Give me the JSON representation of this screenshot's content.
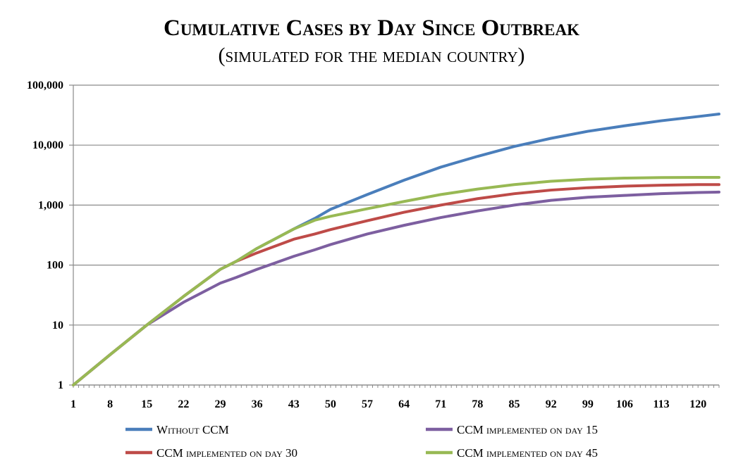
{
  "chart_data": {
    "type": "line",
    "title": "Cumulative Cases by Day Since Outbreak",
    "subtitle": "(simulated for the median country)",
    "xlabel": "",
    "ylabel": "",
    "yscale": "log",
    "ylim": [
      1,
      100000
    ],
    "xlim": [
      1,
      124
    ],
    "grid": true,
    "legend_position": "bottom",
    "x_ticks": [
      "1",
      "8",
      "15",
      "22",
      "29",
      "36",
      "43",
      "50",
      "57",
      "64",
      "71",
      "78",
      "85",
      "92",
      "99",
      "106",
      "113",
      "120"
    ],
    "y_ticks": [
      "1",
      "10",
      "100",
      "1,000",
      "10,000",
      "100,000"
    ],
    "x": [
      1,
      8,
      15,
      22,
      29,
      32,
      36,
      43,
      47,
      50,
      57,
      64,
      71,
      78,
      85,
      92,
      99,
      106,
      113,
      120,
      124
    ],
    "series": [
      {
        "name": "Without  CCM",
        "color": "#4a7ebb",
        "values": [
          1,
          3.2,
          10,
          30,
          85,
          115,
          190,
          400,
          600,
          850,
          1500,
          2600,
          4300,
          6500,
          9500,
          13000,
          17000,
          21000,
          25500,
          30000,
          33000
        ]
      },
      {
        "name": "CCM implemented on day 15",
        "color": "#7d5fa0",
        "values": [
          1,
          3.2,
          10,
          24,
          50,
          62,
          85,
          140,
          180,
          220,
          330,
          460,
          620,
          800,
          1000,
          1200,
          1350,
          1450,
          1550,
          1620,
          1650
        ]
      },
      {
        "name": "CCM implemented on day 30",
        "color": "#be4b48",
        "values": [
          1,
          3.2,
          10,
          30,
          85,
          115,
          160,
          270,
          330,
          390,
          550,
          760,
          1000,
          1280,
          1550,
          1780,
          1950,
          2070,
          2150,
          2200,
          2200
        ]
      },
      {
        "name": "CCM implemented on day 45",
        "color": "#98b954",
        "values": [
          1,
          3.2,
          10,
          30,
          85,
          115,
          190,
          400,
          560,
          650,
          870,
          1150,
          1500,
          1850,
          2200,
          2500,
          2700,
          2820,
          2880,
          2900,
          2900
        ]
      }
    ]
  },
  "colors": {
    "grid": "#8a8a8a",
    "axis": "#8a8a8a"
  }
}
